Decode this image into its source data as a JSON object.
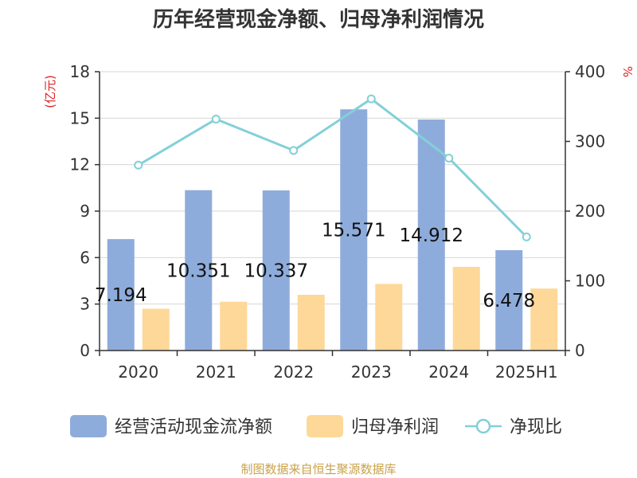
{
  "chart_data": {
    "type": "bar",
    "title": "历年经营现金净额、归母净利润情况",
    "categories": [
      "2020",
      "2021",
      "2022",
      "2023",
      "2024",
      "2025H1"
    ],
    "left_unit": "(亿元)",
    "right_unit": "%",
    "left_ylim": [
      0,
      18
    ],
    "left_ticks": [
      "0",
      "3",
      "6",
      "9",
      "12",
      "15",
      "18"
    ],
    "right_ylim": [
      0,
      400
    ],
    "right_ticks": [
      "0",
      "100",
      "200",
      "300",
      "400"
    ],
    "grid": true,
    "legend_position": "bottom",
    "series": [
      {
        "name": "经营活动现金流净额",
        "type": "bar",
        "axis": "left",
        "color": "#8eacdb",
        "values": [
          7.194,
          10.351,
          10.337,
          15.571,
          14.912,
          6.478
        ],
        "labels": [
          "7.194",
          "10.351",
          "10.337",
          "15.571",
          "14.912",
          "6.478"
        ]
      },
      {
        "name": "归母净利润",
        "type": "bar",
        "axis": "left",
        "color": "#fdd898",
        "values": [
          2.7,
          3.15,
          3.6,
          4.3,
          5.4,
          4.0
        ]
      },
      {
        "name": "净现比",
        "type": "line",
        "axis": "right",
        "color": "#82d0d8",
        "values": [
          266,
          332,
          287,
          361,
          276,
          163
        ]
      }
    ],
    "source": "制图数据来自恒生聚源数据库",
    "colors": {
      "unit": "#e02020",
      "source": "#c9a24a",
      "axis": "#333333",
      "grid": "#d6d6d6"
    }
  }
}
